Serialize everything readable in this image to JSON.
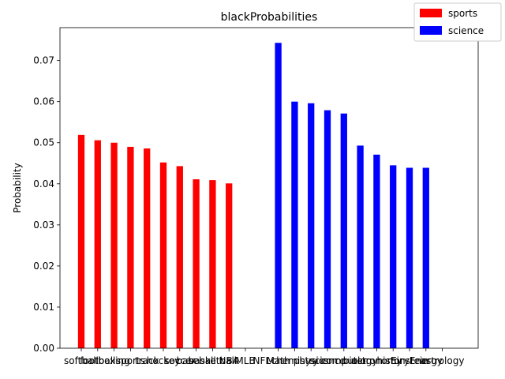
{
  "chart_data": {
    "type": "bar",
    "title": "blackProbabilities",
    "xlabel": "",
    "ylabel": "Probability",
    "ylim": [
      0,
      0.078
    ],
    "yticks": [
      "0.00",
      "0.01",
      "0.02",
      "0.03",
      "0.04",
      "0.05",
      "0.06",
      "0.07"
    ],
    "legend_position": "top-right",
    "categories": [
      "softball",
      "football",
      "boxing",
      "sports",
      "track",
      "hockey",
      "soccer",
      "baseball",
      "basketball",
      "NBA",
      "MLB",
      "NFL",
      "Math",
      "chemistry",
      "physics",
      "science",
      "computer",
      "biology",
      "astronomy",
      "history",
      "Einstein",
      "Energy",
      "astrology"
    ],
    "series": [
      {
        "name": "sports",
        "color": "#ff0000",
        "values": [
          0.0519,
          0.0506,
          0.05,
          0.049,
          0.0486,
          0.0452,
          0.0443,
          0.0411,
          0.0409,
          0.0401,
          0,
          0,
          0,
          0,
          0,
          0,
          0,
          0,
          0,
          0,
          0,
          0,
          0
        ]
      },
      {
        "name": "science",
        "color": "#0000ff",
        "values": [
          0,
          0,
          0,
          0,
          0,
          0,
          0,
          0,
          0,
          0,
          0,
          0,
          0.0743,
          0.06,
          0.0596,
          0.0579,
          0.0571,
          0.0493,
          0.0471,
          0.0445,
          0.0439,
          0.0439,
          0
        ]
      }
    ]
  }
}
